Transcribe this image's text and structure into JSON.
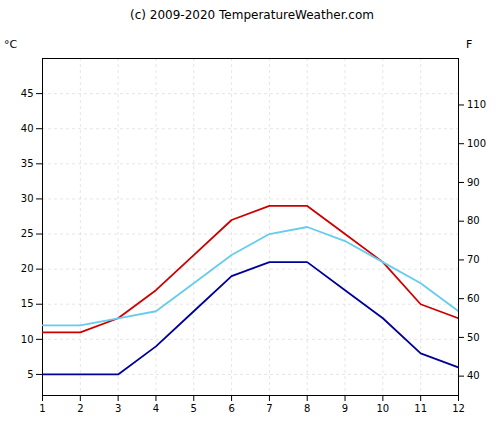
{
  "chart_data": {
    "type": "line",
    "title": "(c) 2009-2020 TemperatureWeather.com",
    "x": [
      1,
      2,
      3,
      4,
      5,
      6,
      7,
      8,
      9,
      10,
      11,
      12
    ],
    "series": [
      {
        "color": "#cc0000",
        "values": [
          11,
          11,
          13,
          17,
          22,
          27,
          29,
          29,
          25,
          21,
          15,
          13
        ]
      },
      {
        "color": "#000099",
        "values": [
          5,
          5,
          5,
          9,
          14,
          19,
          21,
          21,
          17,
          13,
          8,
          6
        ]
      },
      {
        "color": "#66ccee",
        "values": [
          12,
          12,
          13,
          14,
          18,
          22,
          25,
          26,
          24,
          21,
          18,
          14
        ]
      }
    ],
    "xlim": [
      1,
      12
    ],
    "xticks": [
      1,
      2,
      3,
      4,
      5,
      6,
      7,
      8,
      9,
      10,
      11,
      12
    ],
    "ylim": [
      2,
      50
    ],
    "yticks": [
      5,
      10,
      15,
      20,
      25,
      30,
      35,
      40,
      45
    ],
    "ylabel": "°C",
    "y2lim": [
      35,
      122
    ],
    "y2ticks": [
      40,
      50,
      60,
      70,
      80,
      90,
      100,
      110
    ],
    "y2label": "F",
    "grid": true
  }
}
